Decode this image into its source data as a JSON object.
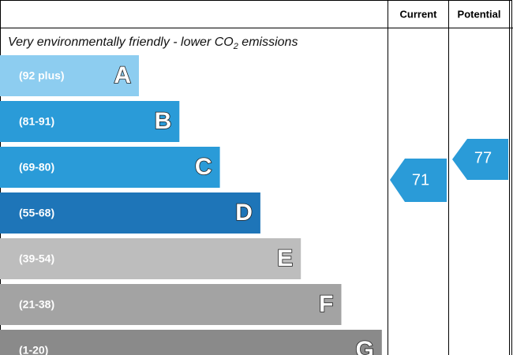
{
  "header": {
    "current": "Current",
    "potential": "Potential"
  },
  "subtitle": {
    "before": "Very environmentally friendly - lower CO",
    "sub": "2",
    "after": " emissions"
  },
  "bands": [
    {
      "range": "(92 plus)",
      "letter": "A",
      "color": "#8dcdf0"
    },
    {
      "range": "(81-91)",
      "letter": "B",
      "color": "#2a9bd8"
    },
    {
      "range": "(69-80)",
      "letter": "C",
      "color": "#2a9bd8"
    },
    {
      "range": "(55-68)",
      "letter": "D",
      "color": "#1e75b8"
    },
    {
      "range": "(39-54)",
      "letter": "E",
      "color": "#bdbdbd"
    },
    {
      "range": "(21-38)",
      "letter": "F",
      "color": "#a3a3a3"
    },
    {
      "range": "(1-20)",
      "letter": "G",
      "color": "#8a8a8a"
    }
  ],
  "current": {
    "value": 71,
    "color": "#2a9bd8"
  },
  "potential": {
    "value": 77,
    "color": "#2a9bd8"
  }
}
